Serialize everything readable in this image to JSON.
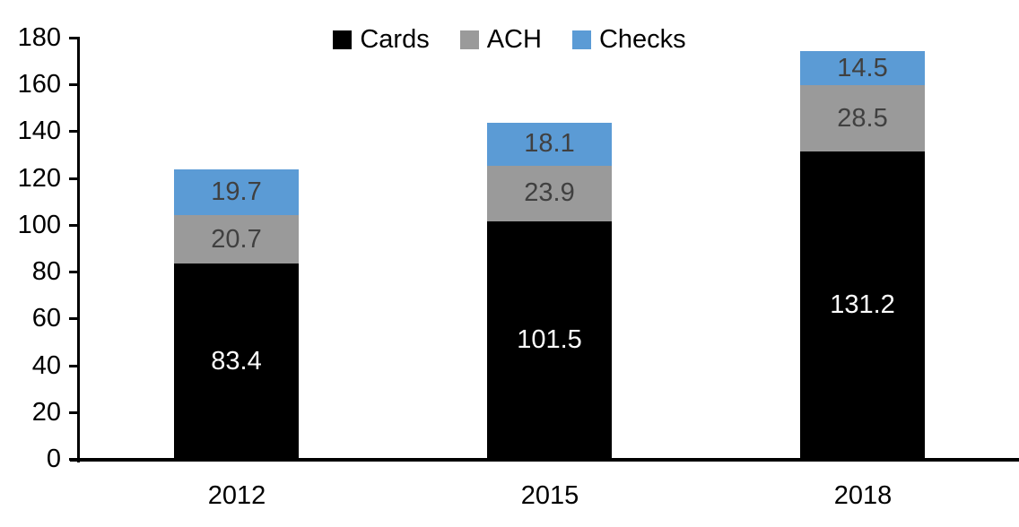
{
  "chart_data": {
    "type": "bar",
    "stacked": true,
    "title": "",
    "xlabel": "",
    "ylabel": "",
    "categories": [
      "2012",
      "2015",
      "2018"
    ],
    "series": [
      {
        "name": "Cards",
        "color": "#000000",
        "label_color": "#ffffff",
        "values": [
          83.4,
          101.5,
          131.2
        ]
      },
      {
        "name": "ACH",
        "color": "#9a9a9a",
        "label_color": "#404040",
        "values": [
          20.7,
          23.9,
          28.5
        ]
      },
      {
        "name": "Checks",
        "color": "#5b9bd5",
        "label_color": "#404040",
        "values": [
          19.7,
          18.1,
          14.5
        ]
      }
    ],
    "ylim": [
      0,
      180
    ],
    "yticks": [
      0,
      20,
      40,
      60,
      80,
      100,
      120,
      140,
      160,
      180
    ],
    "grid": false,
    "legend_position": "top-center",
    "value_label_decimals": 1
  }
}
